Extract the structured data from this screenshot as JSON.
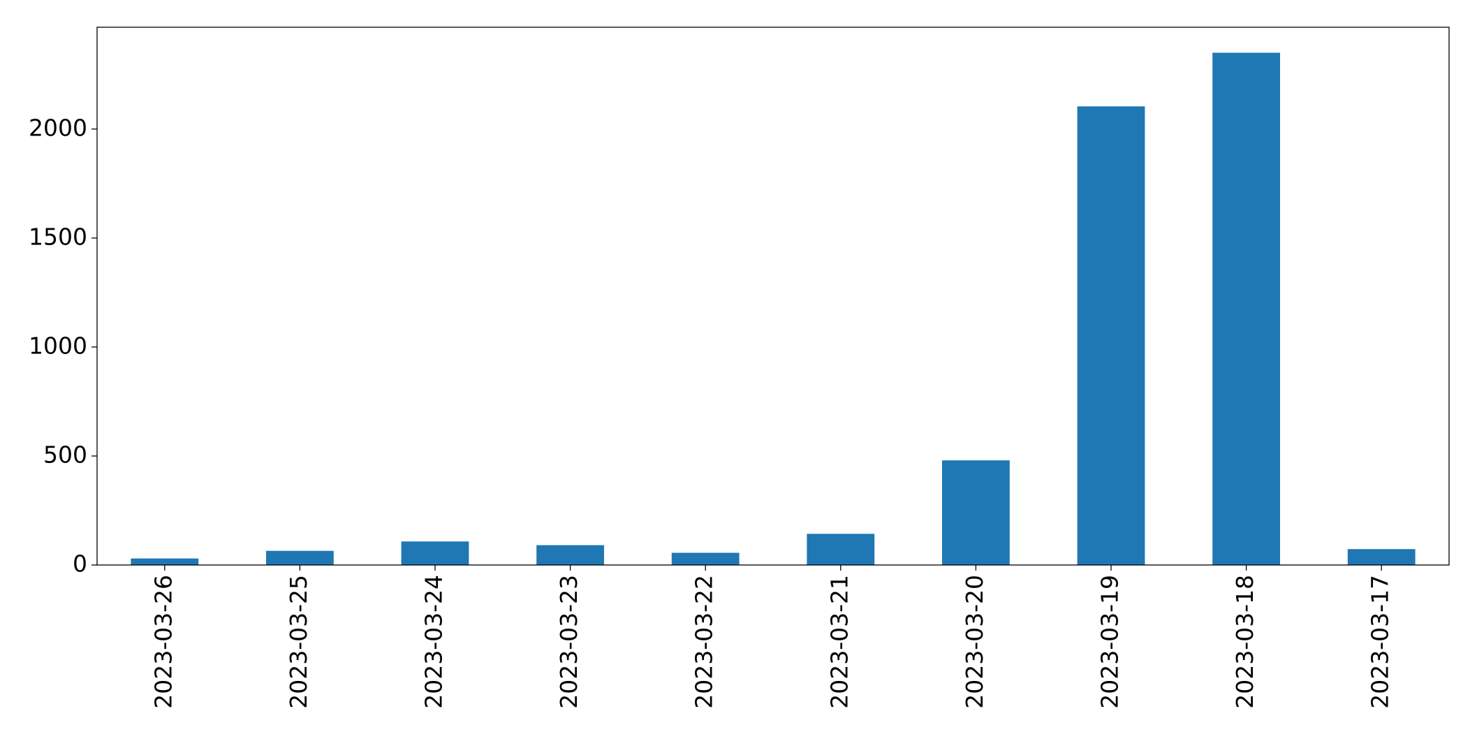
{
  "chart_data": {
    "type": "bar",
    "categories": [
      "2023-03-26",
      "2023-03-25",
      "2023-03-24",
      "2023-03-23",
      "2023-03-22",
      "2023-03-21",
      "2023-03-20",
      "2023-03-19",
      "2023-03-18",
      "2023-03-17"
    ],
    "values": [
      30,
      65,
      108,
      91,
      56,
      143,
      480,
      2104,
      2350,
      73
    ],
    "color": "#1f77b4",
    "ylim": [
      0,
      2467
    ],
    "yticks": [
      0,
      500,
      1000,
      1500,
      2000
    ],
    "grid": false
  }
}
